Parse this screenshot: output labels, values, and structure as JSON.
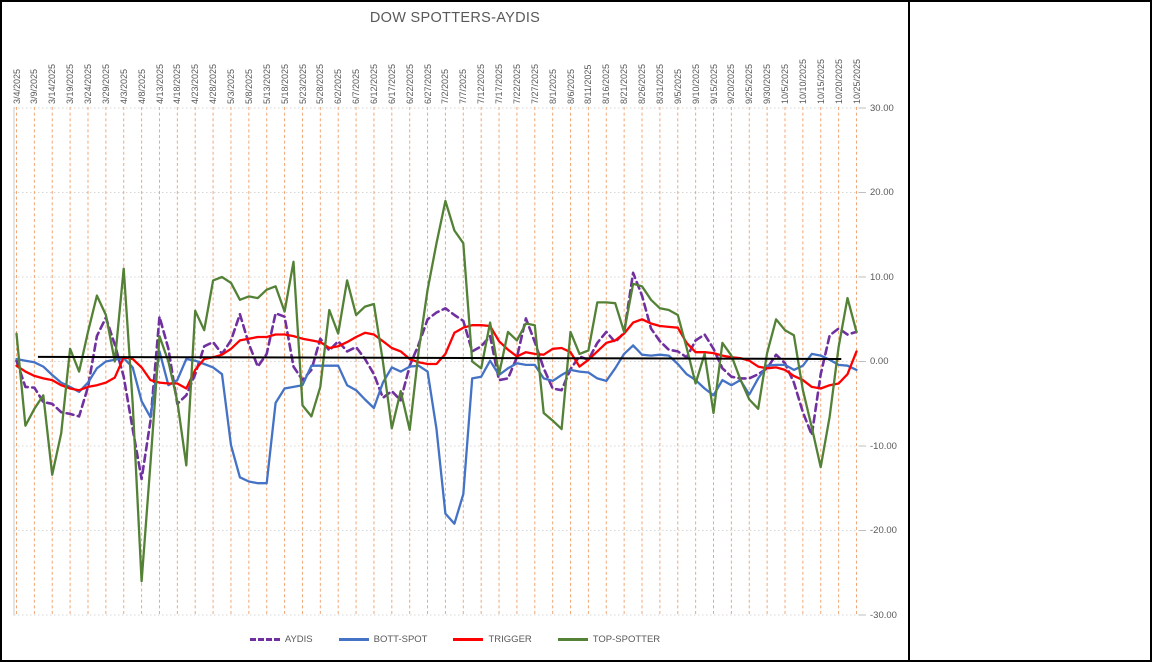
{
  "chart_data": {
    "type": "line",
    "title": "DOW SPOTTERS-AYDIS",
    "xlabel": "",
    "ylabel": "",
    "ylim": [
      -30,
      30
    ],
    "y_tick_labels": [
      "30.00",
      "20.00",
      "10.00",
      "0.00",
      "-10.00",
      "-20.00",
      "-30.00"
    ],
    "y_tick_values": [
      30,
      20,
      10,
      0,
      -10,
      -20,
      -30
    ],
    "x_tick_labels": [
      "3/4/2025",
      "3/9/2025",
      "3/14/2025",
      "3/19/2025",
      "3/24/2025",
      "3/29/2025",
      "4/3/2025",
      "4/8/2025",
      "4/13/2025",
      "4/18/2025",
      "4/23/2025",
      "4/28/2025",
      "5/3/2025",
      "5/8/2025",
      "5/13/2025",
      "5/18/2025",
      "5/23/2025",
      "5/28/2025",
      "6/2/2025",
      "6/7/2025",
      "6/12/2025",
      "6/17/2025",
      "6/22/2025",
      "6/27/2025",
      "7/2/2025",
      "7/7/2025",
      "7/12/2025",
      "7/17/2025",
      "7/22/2025",
      "7/27/2025",
      "8/1/2025",
      "8/6/2025",
      "8/11/2025",
      "8/16/2025",
      "8/21/2025",
      "8/26/2025",
      "8/31/2025",
      "9/5/2025",
      "9/10/2025",
      "9/15/2025",
      "9/20/2025",
      "9/25/2025",
      "9/30/2025",
      "10/5/2025",
      "10/10/2025",
      "10/15/2025",
      "10/20/2025",
      "10/25/2025"
    ],
    "points_per_label_interval": 2,
    "grid": {
      "vertical_color": "#F0A878",
      "horizontal_color": "#D8D8D8",
      "style": "dashed"
    },
    "legend_position": "bottom",
    "series": [
      {
        "name": "AYDIS",
        "color": "#7030A0",
        "style": "dashed",
        "values": [
          0.1,
          -3,
          -3.1,
          -4.8,
          -5,
          -6,
          -6.2,
          -6.5,
          -3,
          3,
          5.2,
          2,
          -1.8,
          -8,
          -13.9,
          -7,
          5.3,
          1.5,
          -5,
          -4,
          -1.5,
          1.8,
          2.3,
          0.9,
          2.5,
          5.6,
          2.1,
          -0.6,
          0.9,
          5.7,
          5.3,
          -0.6,
          -2.2,
          -1,
          2.7,
          1.3,
          2.4,
          1.2,
          1.7,
          0.3,
          -1.5,
          -4.3,
          -3.5,
          -4.6,
          -0.5,
          2,
          5,
          5.8,
          6.3,
          5.5,
          4.8,
          1.2,
          1.8,
          3,
          -2.2,
          -2,
          0.5,
          5.1,
          2.3,
          -0.8,
          -3.2,
          -3.4,
          -0.9,
          0.6,
          0.2,
          2.2,
          3.5,
          2.3,
          3.4,
          10.5,
          7.8,
          3.9,
          2.4,
          1.4,
          1.2,
          0.5,
          2.5,
          3.2,
          1.5,
          -0.8,
          -1.8,
          -2,
          -2,
          -1.5,
          -0.8,
          0.8,
          -0.2,
          -2.5,
          -6,
          -8.7,
          -1.5,
          3.1,
          3.9,
          3.2,
          3.5
        ]
      },
      {
        "name": "BOTT-SPOT",
        "color": "#4472C4",
        "style": "solid",
        "values": [
          0.3,
          0.1,
          -0.1,
          -0.6,
          -1.6,
          -2.5,
          -3,
          -3.6,
          -2.5,
          -0.8,
          0,
          0.2,
          0.4,
          -0.7,
          -4.7,
          -6.6,
          1.2,
          -2.8,
          -2.2,
          0.3,
          0.1,
          -0.3,
          -0.7,
          -1.5,
          -9.9,
          -13.7,
          -14.2,
          -14.4,
          -14.4,
          -4.9,
          -3.2,
          -3,
          -2.8,
          -0.5,
          -0.5,
          -0.5,
          -0.5,
          -2.8,
          -3.4,
          -4.5,
          -5.5,
          -2.5,
          -0.7,
          -1.2,
          -0.6,
          -0.5,
          -1.2,
          -8,
          -18,
          -19.2,
          -15.7,
          -2,
          -1.8,
          0.1,
          -1.6,
          -0.8,
          -0.2,
          -0.4,
          -0.4,
          -2,
          -2.3,
          -1.6,
          -1,
          -1.2,
          -1.3,
          -2,
          -2.3,
          -0.8,
          0.9,
          1.9,
          0.8,
          0.7,
          0.8,
          0.7,
          -0.3,
          -1.5,
          -2.2,
          -3.2,
          -4,
          -2.2,
          -2.8,
          -2.2,
          -3.9,
          -2,
          -0.5,
          -0.4,
          -0.4,
          -1,
          -0.5,
          0.9,
          0.7,
          0.2,
          -0.4,
          -0.5,
          -1
        ]
      },
      {
        "name": "TRIGGER",
        "color": "#FF0000",
        "style": "solid",
        "values": [
          -0.5,
          -1.2,
          -1.7,
          -2,
          -2.2,
          -2.8,
          -3.2,
          -3.4,
          -3,
          -2.8,
          -2.5,
          -1.9,
          0.5,
          0.3,
          -0.7,
          -2.2,
          -2.5,
          -2.6,
          -2.6,
          -3.2,
          -1,
          0.3,
          0.5,
          0.8,
          1.5,
          2.5,
          2.7,
          2.9,
          2.9,
          3.2,
          3.2,
          3,
          2.7,
          2.5,
          2.3,
          1.6,
          1.8,
          2.3,
          2.9,
          3.4,
          3.2,
          2.4,
          1.6,
          1.2,
          0.3,
          -0.1,
          -0.3,
          -0.3,
          0.9,
          3.4,
          4,
          4.3,
          4.3,
          4.2,
          2.4,
          1.4,
          0.6,
          1.1,
          0.9,
          0.8,
          1.5,
          1.6,
          1.1,
          -0.6,
          0.2,
          1.2,
          2.2,
          2.5,
          3.3,
          4.6,
          5,
          4.5,
          4.2,
          4.1,
          4,
          2.2,
          1.1,
          1.1,
          1,
          0.7,
          0.5,
          0.4,
          0.1,
          -0.6,
          -0.8,
          -0.7,
          -1,
          -1.7,
          -2.2,
          -3,
          -3.2,
          -2.8,
          -2.6,
          -1.5,
          1.2
        ]
      },
      {
        "name": "TOP-SPOTTER",
        "color": "#538135",
        "style": "solid",
        "values": [
          3.3,
          -7.6,
          -5.6,
          -4,
          -13.4,
          -8.5,
          1.5,
          -1.2,
          3.5,
          7.8,
          5.5,
          0,
          11,
          -5,
          -26,
          -12,
          3,
          0,
          -4.7,
          -12.3,
          6,
          3.7,
          9.6,
          10,
          9.3,
          7.3,
          7.7,
          7.5,
          8.5,
          8.9,
          5.9,
          11.8,
          -5.2,
          -6.5,
          -3,
          6.1,
          3.3,
          9.6,
          5.5,
          6.5,
          6.8,
          0,
          -7.9,
          -3.5,
          -8.1,
          1.2,
          8.5,
          14,
          19,
          15.5,
          14,
          0,
          -0.8,
          4.6,
          -1.5,
          3.5,
          2.5,
          4.5,
          4.3,
          -6.1,
          -7,
          -8,
          3.5,
          0.9,
          1.3,
          7,
          7,
          6.9,
          3.5,
          9.2,
          8.9,
          7.3,
          6.3,
          6.1,
          5.5,
          1.6,
          -2.6,
          0.9,
          -6.1,
          2.2,
          0.7,
          -2.1,
          -4.5,
          -5.6,
          1,
          5,
          3.7,
          3.1,
          -3.4,
          -7.8,
          -12.5,
          -6.5,
          1.7,
          7.5,
          3.5
        ]
      }
    ],
    "baseline": {
      "name": "zero-trendline",
      "color": "#000000",
      "start_value": 0.55,
      "end_value": 0.3,
      "start_index": 2.4,
      "end_index": 92.3
    }
  }
}
